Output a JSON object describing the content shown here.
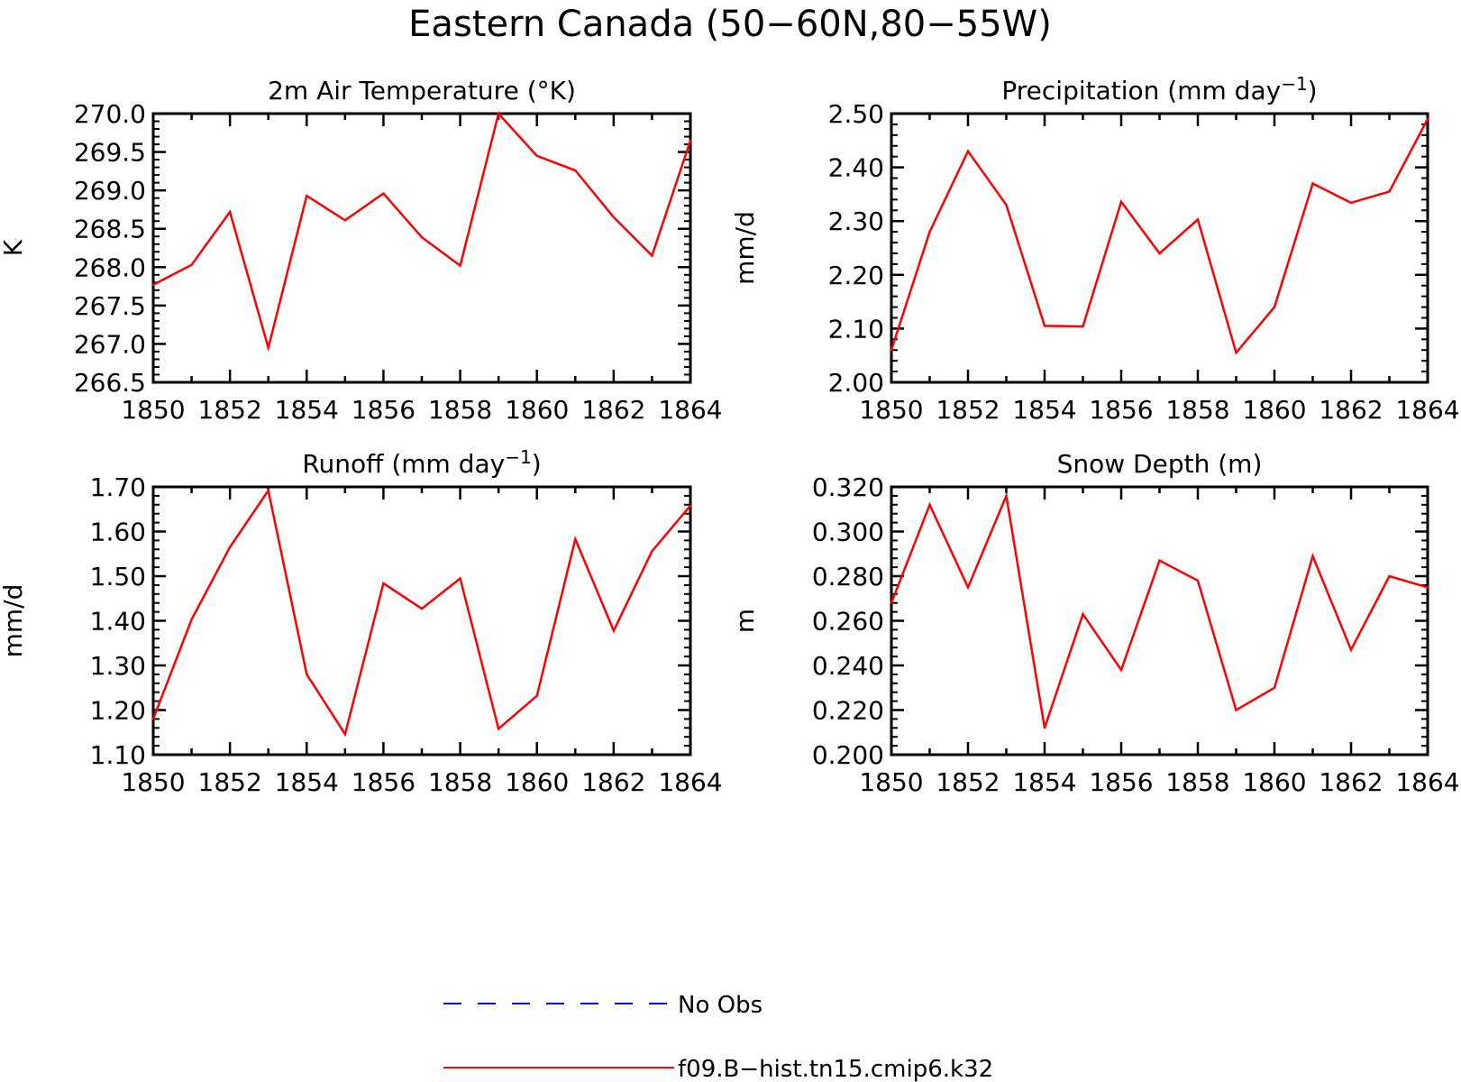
{
  "title": "Eastern Canada (50−60N,80−55W)",
  "line_colors": {
    "model": "#ff0000",
    "obs": "#0000ff"
  },
  "legend": [
    {
      "label": "No Obs",
      "style": "dashed",
      "color": "#0000ff"
    },
    {
      "label": "f09.B−hist.tn15.cmip6.k32",
      "style": "solid",
      "color": "#ff0000"
    }
  ],
  "chart_data": [
    {
      "type": "line",
      "title": "2m Air Temperature (°K)",
      "title_sup": "",
      "title_close": "",
      "ylabel": "K",
      "xlabel": "",
      "x": [
        1850,
        1851,
        1852,
        1853,
        1854,
        1855,
        1856,
        1857,
        1858,
        1859,
        1860,
        1861,
        1862,
        1863,
        1864
      ],
      "xticks": [
        "1850",
        "1852",
        "1854",
        "1856",
        "1858",
        "1860",
        "1862",
        "1864"
      ],
      "xlim": [
        1850,
        1864
      ],
      "ylim": [
        266.5,
        270.0
      ],
      "yticks": [
        "266.5",
        "267.0",
        "267.5",
        "268.0",
        "268.5",
        "269.0",
        "269.5",
        "270.0"
      ],
      "series": [
        {
          "name": "f09.B−hist.tn15.cmip6.k32",
          "values": [
            267.77,
            268.03,
            268.72,
            266.95,
            268.93,
            268.61,
            268.96,
            268.39,
            268.02,
            270.0,
            269.45,
            269.26,
            268.65,
            268.15,
            269.65
          ]
        }
      ]
    },
    {
      "type": "line",
      "title": "Precipitation (mm day",
      "title_sup": "−1",
      "title_close": ")",
      "ylabel": "mm/d",
      "xlabel": "",
      "x": [
        1850,
        1851,
        1852,
        1853,
        1854,
        1855,
        1856,
        1857,
        1858,
        1859,
        1860,
        1861,
        1862,
        1863,
        1864
      ],
      "xticks": [
        "1850",
        "1852",
        "1854",
        "1856",
        "1858",
        "1860",
        "1862",
        "1864"
      ],
      "xlim": [
        1850,
        1864
      ],
      "ylim": [
        2.0,
        2.5
      ],
      "yticks": [
        "2.00",
        "2.10",
        "2.20",
        "2.30",
        "2.40",
        "2.50"
      ],
      "series": [
        {
          "name": "f09.B−hist.tn15.cmip6.k32",
          "values": [
            2.06,
            2.28,
            2.43,
            2.33,
            2.105,
            2.104,
            2.336,
            2.24,
            2.303,
            2.055,
            2.14,
            2.37,
            2.334,
            2.355,
            2.49
          ]
        }
      ]
    },
    {
      "type": "line",
      "title": "Runoff (mm day",
      "title_sup": "−1",
      "title_close": ")",
      "ylabel": "mm/d",
      "xlabel": "",
      "x": [
        1850,
        1851,
        1852,
        1853,
        1854,
        1855,
        1856,
        1857,
        1858,
        1859,
        1860,
        1861,
        1862,
        1863,
        1864
      ],
      "xticks": [
        "1850",
        "1852",
        "1854",
        "1856",
        "1858",
        "1860",
        "1862",
        "1864"
      ],
      "xlim": [
        1850,
        1864
      ],
      "ylim": [
        1.1,
        1.7
      ],
      "yticks": [
        "1.10",
        "1.20",
        "1.30",
        "1.40",
        "1.50",
        "1.60",
        "1.70"
      ],
      "series": [
        {
          "name": "f09.B−hist.tn15.cmip6.k32",
          "values": [
            1.18,
            1.403,
            1.565,
            1.692,
            1.28,
            1.146,
            1.484,
            1.427,
            1.495,
            1.158,
            1.232,
            1.583,
            1.378,
            1.556,
            1.658
          ]
        }
      ]
    },
    {
      "type": "line",
      "title": "Snow Depth (m)",
      "title_sup": "",
      "title_close": "",
      "ylabel": "m",
      "xlabel": "",
      "x": [
        1850,
        1851,
        1852,
        1853,
        1854,
        1855,
        1856,
        1857,
        1858,
        1859,
        1860,
        1861,
        1862,
        1863,
        1864
      ],
      "xticks": [
        "1850",
        "1852",
        "1854",
        "1856",
        "1858",
        "1860",
        "1862",
        "1864"
      ],
      "xlim": [
        1850,
        1864
      ],
      "ylim": [
        0.2,
        0.32
      ],
      "yticks": [
        "0.200",
        "0.220",
        "0.240",
        "0.260",
        "0.280",
        "0.300",
        "0.320"
      ],
      "series": [
        {
          "name": "f09.B−hist.tn15.cmip6.k32",
          "values": [
            0.268,
            0.312,
            0.275,
            0.316,
            0.212,
            0.263,
            0.238,
            0.287,
            0.278,
            0.22,
            0.23,
            0.289,
            0.247,
            0.28,
            0.275
          ]
        }
      ]
    }
  ]
}
